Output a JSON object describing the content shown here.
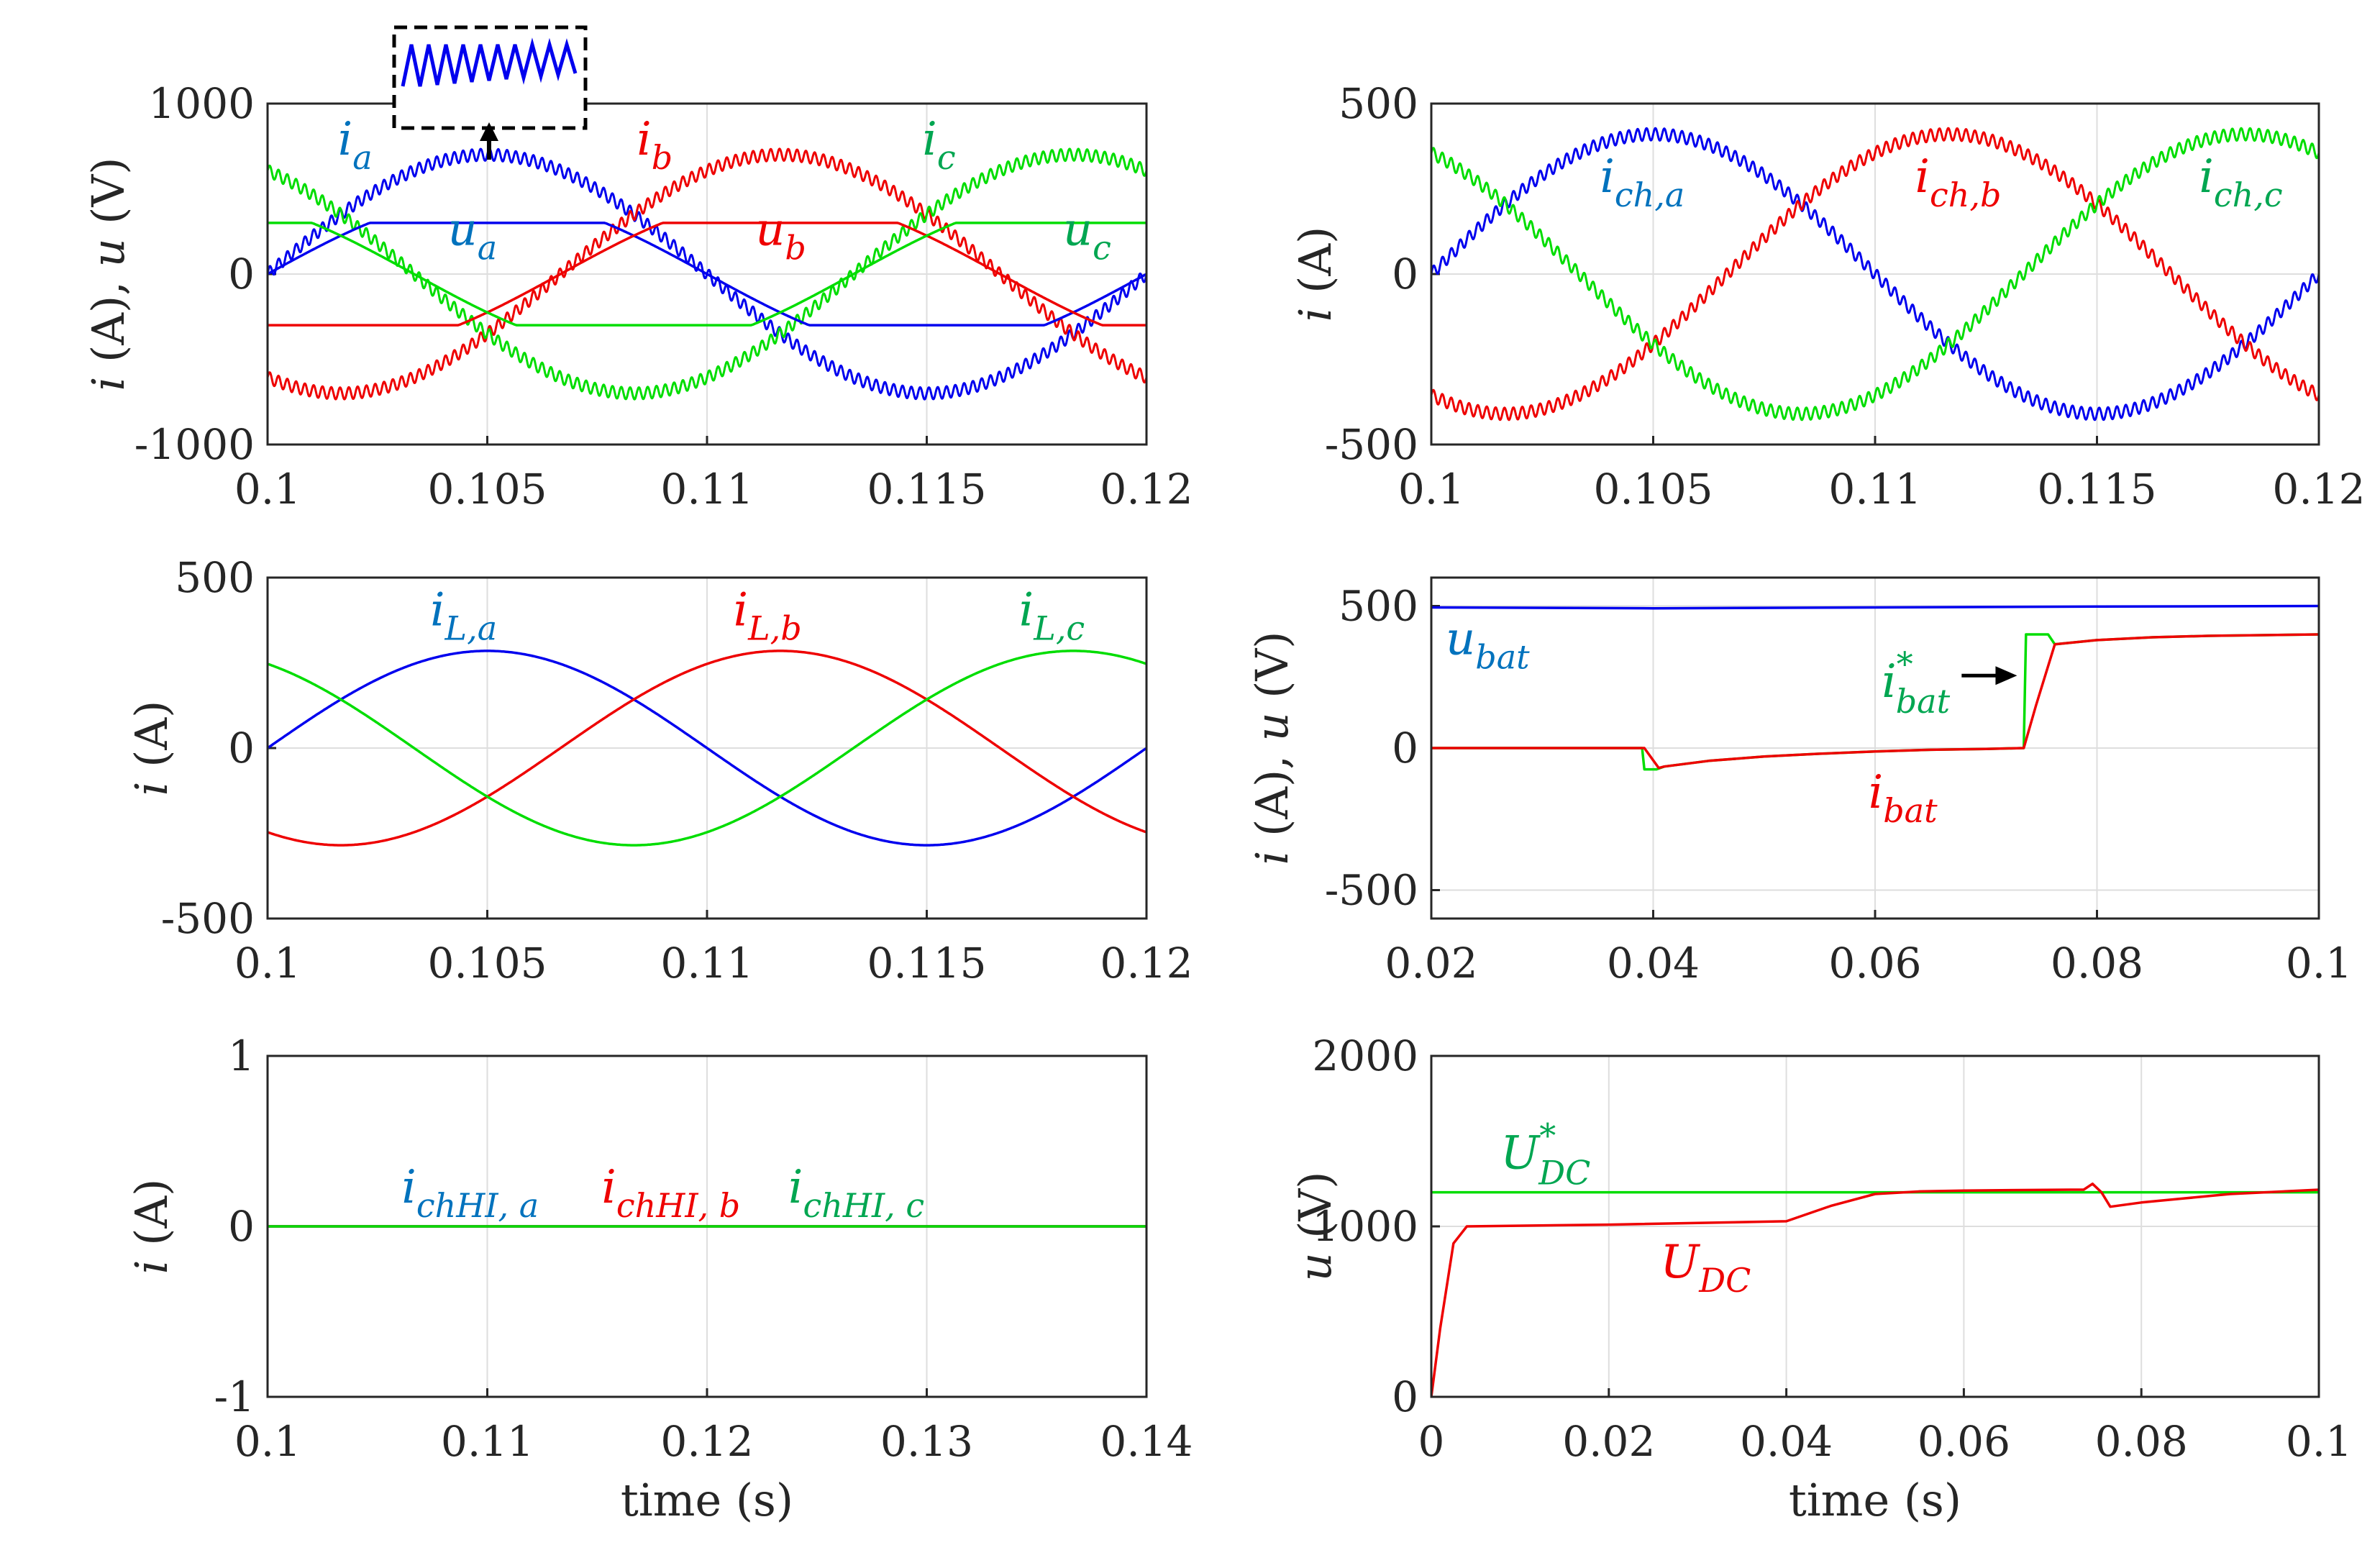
{
  "colors": {
    "blue": "#0000ee",
    "red": "#ee0000",
    "green": "#00dd00",
    "label_blue": "#0072bd",
    "label_red": "#ee0000",
    "label_green": "#00a651"
  },
  "chart_data": [
    {
      "id": "p1",
      "type": "line",
      "xlim": [
        0.1,
        0.12
      ],
      "ylim": [
        -1000,
        1000
      ],
      "xticks": [
        "0.1",
        "0.105",
        "0.11",
        "0.115",
        "0.12"
      ],
      "yticks": [
        "-1000",
        "0",
        "1000"
      ],
      "ylabel": "i (A), u (V)",
      "series": [
        {
          "label": "ia",
          "kind": "sine",
          "amp": 700,
          "freq": 50,
          "t0": 0.1,
          "phase_deg": 0,
          "ripple": 35,
          "color": "#0000ee"
        },
        {
          "label": "ib",
          "kind": "sine",
          "amp": 700,
          "freq": 50,
          "t0": 0.1,
          "phase_deg": -120,
          "ripple": 35,
          "color": "#ee0000"
        },
        {
          "label": "ic",
          "kind": "sine",
          "amp": 700,
          "freq": 50,
          "t0": 0.1,
          "phase_deg": 120,
          "ripple": 35,
          "color": "#00dd00"
        },
        {
          "label": "ua",
          "kind": "clipped",
          "amp": 450,
          "clip": 300,
          "freq": 50,
          "t0": 0.1,
          "phase_deg": 0,
          "color": "#0000ee"
        },
        {
          "label": "ub",
          "kind": "clipped",
          "amp": 450,
          "clip": 300,
          "freq": 50,
          "t0": 0.1,
          "phase_deg": -120,
          "color": "#ee0000"
        },
        {
          "label": "uc",
          "kind": "clipped",
          "amp": 450,
          "clip": 300,
          "freq": 50,
          "t0": 0.1,
          "phase_deg": 120,
          "color": "#00dd00"
        }
      ],
      "annotations": [
        {
          "main": "i",
          "sub": "a",
          "x": 0.1016,
          "y": 700,
          "color": "#0072bd"
        },
        {
          "main": "i",
          "sub": "b",
          "x": 0.1084,
          "y": 700,
          "color": "#ee0000"
        },
        {
          "main": "i",
          "sub": "c",
          "x": 0.1149,
          "y": 700,
          "color": "#00a651"
        },
        {
          "main": "u",
          "sub": "a",
          "x": 0.1041,
          "y": 170,
          "color": "#0072bd"
        },
        {
          "main": "u",
          "sub": "b",
          "x": 0.1111,
          "y": 170,
          "color": "#ee0000"
        },
        {
          "main": "u",
          "sub": "c",
          "x": 0.1181,
          "y": 170,
          "color": "#00a651"
        }
      ]
    },
    {
      "id": "p2",
      "type": "line",
      "xlim": [
        0.1,
        0.12
      ],
      "ylim": [
        -500,
        500
      ],
      "xticks": [
        "0.1",
        "0.105",
        "0.11",
        "0.115",
        "0.12"
      ],
      "yticks": [
        "-500",
        "0",
        "500"
      ],
      "ylabel": "i (A)",
      "series": [
        {
          "label": "ich,a",
          "kind": "sine",
          "amp": 410,
          "freq": 50,
          "t0": 0.1,
          "phase_deg": 0,
          "ripple": 18,
          "color": "#0000ee"
        },
        {
          "label": "ich,b",
          "kind": "sine",
          "amp": 410,
          "freq": 50,
          "t0": 0.1,
          "phase_deg": -120,
          "ripple": 18,
          "color": "#ee0000"
        },
        {
          "label": "ich,c",
          "kind": "sine",
          "amp": 410,
          "freq": 50,
          "t0": 0.1,
          "phase_deg": 120,
          "ripple": 18,
          "color": "#00dd00"
        }
      ],
      "annotations": [
        {
          "main": "i",
          "sub": "ch,a",
          "x": 0.1038,
          "y": 240,
          "color": "#0072bd"
        },
        {
          "main": "i",
          "sub": "ch,b",
          "x": 0.1109,
          "y": 240,
          "color": "#ee0000"
        },
        {
          "main": "i",
          "sub": "ch,c",
          "x": 0.1173,
          "y": 240,
          "color": "#00a651"
        }
      ]
    },
    {
      "id": "p3",
      "type": "line",
      "xlim": [
        0.1,
        0.12
      ],
      "ylim": [
        -500,
        500
      ],
      "xticks": [
        "0.1",
        "0.105",
        "0.11",
        "0.115",
        "0.12"
      ],
      "yticks": [
        "-500",
        "0",
        "500"
      ],
      "ylabel": "i (A)",
      "series": [
        {
          "label": "iL,a",
          "kind": "sine",
          "amp": 285,
          "freq": 50,
          "t0": 0.1,
          "phase_deg": 0,
          "color": "#0000ee"
        },
        {
          "label": "iL,b",
          "kind": "sine",
          "amp": 285,
          "freq": 50,
          "t0": 0.1,
          "phase_deg": -120,
          "color": "#ee0000"
        },
        {
          "label": "iL,c",
          "kind": "sine",
          "amp": 285,
          "freq": 50,
          "t0": 0.1,
          "phase_deg": 120,
          "color": "#00dd00"
        }
      ],
      "annotations": [
        {
          "main": "i",
          "sub": "L,a",
          "x": 0.1037,
          "y": 360,
          "color": "#0072bd"
        },
        {
          "main": "i",
          "sub": "L,b",
          "x": 0.1106,
          "y": 360,
          "color": "#ee0000"
        },
        {
          "main": "i",
          "sub": "L,c",
          "x": 0.1171,
          "y": 360,
          "color": "#00a651"
        }
      ]
    },
    {
      "id": "p4",
      "type": "line",
      "xlim": [
        0.02,
        0.1
      ],
      "ylim": [
        -600,
        600
      ],
      "xticks": [
        "0.02",
        "0.04",
        "0.06",
        "0.08",
        "0.1"
      ],
      "yticks": [
        "-500",
        "0",
        "500"
      ],
      "ylabel": "i (A), u (V)",
      "series": [
        {
          "label": "ubat",
          "kind": "points",
          "color": "#0000ee",
          "points": [
            [
              0.02,
              495
            ],
            [
              0.04,
              492
            ],
            [
              0.06,
              495
            ],
            [
              0.08,
              498
            ],
            [
              0.1,
              500
            ]
          ]
        },
        {
          "label": "ibat*",
          "kind": "points",
          "color": "#00dd00",
          "points": [
            [
              0.02,
              0
            ],
            [
              0.039,
              0
            ],
            [
              0.0392,
              -75
            ],
            [
              0.0403,
              -75
            ],
            [
              0.041,
              -65
            ],
            [
              0.045,
              -45
            ],
            [
              0.05,
              -30
            ],
            [
              0.055,
              -20
            ],
            [
              0.06,
              -12
            ],
            [
              0.065,
              -6
            ],
            [
              0.07,
              -3
            ],
            [
              0.0734,
              0
            ],
            [
              0.0736,
              400
            ],
            [
              0.0756,
              400
            ],
            [
              0.0762,
              365
            ],
            [
              0.08,
              380
            ],
            [
              0.085,
              390
            ],
            [
              0.09,
              395
            ],
            [
              0.1,
              400
            ]
          ]
        },
        {
          "label": "ibat",
          "kind": "points",
          "color": "#ee0000",
          "points": [
            [
              0.02,
              0
            ],
            [
              0.0392,
              0
            ],
            [
              0.0405,
              -70
            ],
            [
              0.041,
              -65
            ],
            [
              0.045,
              -45
            ],
            [
              0.05,
              -30
            ],
            [
              0.055,
              -20
            ],
            [
              0.06,
              -12
            ],
            [
              0.065,
              -6
            ],
            [
              0.07,
              -3
            ],
            [
              0.0734,
              0
            ],
            [
              0.0745,
              150
            ],
            [
              0.0762,
              365
            ],
            [
              0.08,
              380
            ],
            [
              0.085,
              390
            ],
            [
              0.09,
              395
            ],
            [
              0.1,
              400
            ]
          ]
        }
      ],
      "annotations": [
        {
          "main": "u",
          "sub": "bat",
          "x": 0.0213,
          "y": 330,
          "color": "#0072bd"
        },
        {
          "main": "i",
          "sub": "bat",
          "sup": "*",
          "x": 0.0606,
          "y": 180,
          "color": "#00a651"
        },
        {
          "main": "i",
          "sub": "bat",
          "x": 0.0594,
          "y": -210,
          "color": "#ee0000"
        }
      ],
      "arrow": {
        "from": [
          0.0678,
          255
        ],
        "to": [
          0.0728,
          255
        ]
      }
    },
    {
      "id": "p5",
      "type": "line",
      "xlim": [
        0.1,
        0.14
      ],
      "ylim": [
        -1,
        1
      ],
      "xticks": [
        "0.1",
        "0.11",
        "0.12",
        "0.13",
        "0.14"
      ],
      "yticks": [
        "-1",
        "0",
        "1"
      ],
      "ylabel": "i (A)",
      "xlabel": "time (s)",
      "series": [
        {
          "label": "ichHI,a",
          "kind": "points",
          "color": "#0000ee",
          "points": [
            [
              0.1,
              0
            ],
            [
              0.14,
              0
            ]
          ]
        },
        {
          "label": "ichHI,b",
          "kind": "points",
          "color": "#ee0000",
          "points": [
            [
              0.1,
              0
            ],
            [
              0.14,
              0
            ]
          ]
        },
        {
          "label": "ichHI,c",
          "kind": "points",
          "color": "#00dd00",
          "points": [
            [
              0.1,
              0
            ],
            [
              0.14,
              0
            ]
          ]
        }
      ],
      "annotations": [
        {
          "main": "i",
          "sub": "chHI, a",
          "x": 0.1061,
          "y": 0.14,
          "color": "#0072bd"
        },
        {
          "main": "i",
          "sub": "chHI, b",
          "x": 0.1152,
          "y": 0.14,
          "color": "#ee0000"
        },
        {
          "main": "i",
          "sub": "chHI, c",
          "x": 0.1237,
          "y": 0.14,
          "color": "#00a651"
        }
      ]
    },
    {
      "id": "p6",
      "type": "line",
      "xlim": [
        0,
        0.1
      ],
      "ylim": [
        0,
        2000
      ],
      "xticks": [
        "0",
        "0.02",
        "0.04",
        "0.06",
        "0.08",
        "0.1"
      ],
      "yticks": [
        "0",
        "1000",
        "2000"
      ],
      "ylabel": "u (V)",
      "xlabel": "time (s)",
      "series": [
        {
          "label": "UDC*",
          "kind": "points",
          "color": "#00dd00",
          "points": [
            [
              0,
              1200
            ],
            [
              0.1,
              1200
            ]
          ]
        },
        {
          "label": "UDC",
          "kind": "points",
          "color": "#ee0000",
          "points": [
            [
              0,
              0
            ],
            [
              0.001,
              400
            ],
            [
              0.0025,
              900
            ],
            [
              0.004,
              1000
            ],
            [
              0.02,
              1010
            ],
            [
              0.04,
              1030
            ],
            [
              0.045,
              1120
            ],
            [
              0.05,
              1190
            ],
            [
              0.055,
              1205
            ],
            [
              0.06,
              1210
            ],
            [
              0.072,
              1215
            ],
            [
              0.0735,
              1215
            ],
            [
              0.0745,
              1250
            ],
            [
              0.0755,
              1200
            ],
            [
              0.0765,
              1115
            ],
            [
              0.08,
              1140
            ],
            [
              0.085,
              1165
            ],
            [
              0.09,
              1190
            ],
            [
              0.1,
              1215
            ]
          ]
        }
      ],
      "annotations": [
        {
          "main": "U",
          "sub": "DC",
          "sup": "*",
          "x": 0.0078,
          "y": 1340,
          "color": "#00a651"
        },
        {
          "main": "U",
          "sub": "DC",
          "x": 0.0258,
          "y": 700,
          "color": "#ee0000"
        }
      ]
    }
  ]
}
